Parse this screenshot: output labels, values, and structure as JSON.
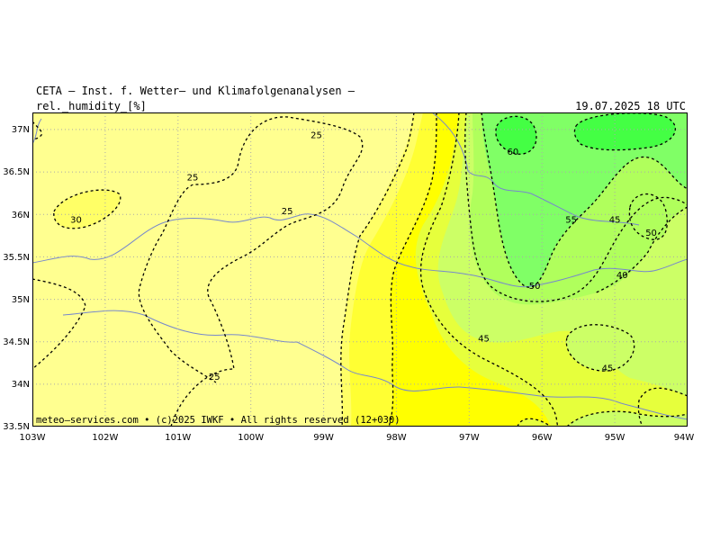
{
  "header": {
    "title": "CETA – Inst. f. Wetter– und Klimafolgenanalysen –",
    "variable": "rel._humidity_[%]",
    "datetime": "19.07.2025 18 UTC"
  },
  "map": {
    "lon_range": [
      -103,
      -94
    ],
    "lat_range": [
      33.5,
      37.2
    ],
    "lon_labels": [
      "103W",
      "102W",
      "101W",
      "100W",
      "99W",
      "98W",
      "97W",
      "96W",
      "95W",
      "94W"
    ],
    "lat_labels": [
      "37N",
      "36.5N",
      "36N",
      "35.5N",
      "35N",
      "34.5N",
      "34N",
      "33.5N"
    ],
    "contour_labels": [
      {
        "text": "25",
        "lon": -99.1,
        "lat": 36.9
      },
      {
        "text": "25",
        "lon": -100.8,
        "lat": 36.4
      },
      {
        "text": "25",
        "lon": -99.5,
        "lat": 36.0
      },
      {
        "text": "25",
        "lon": -100.5,
        "lat": 34.05
      },
      {
        "text": "30",
        "lon": -102.4,
        "lat": 35.9
      },
      {
        "text": "60",
        "lon": -96.4,
        "lat": 36.7
      },
      {
        "text": "55",
        "lon": -95.6,
        "lat": 35.9
      },
      {
        "text": "45",
        "lon": -95.0,
        "lat": 35.9
      },
      {
        "text": "50",
        "lon": -94.5,
        "lat": 35.75
      },
      {
        "text": "50",
        "lon": -96.1,
        "lat": 35.12
      },
      {
        "text": "40",
        "lon": -94.9,
        "lat": 35.25
      },
      {
        "text": "45",
        "lon": -96.8,
        "lat": 34.5
      },
      {
        "text": "45",
        "lon": -95.1,
        "lat": 34.15
      }
    ],
    "colors": {
      "rh_20_25": "#ffff90",
      "rh_25_30": "#ffff66",
      "rh_30_35": "#ffff33",
      "rh_35_40": "#ffff00",
      "rh_40_45": "#e6ff3c",
      "rh_45_50": "#ccff66",
      "rh_50_55": "#b0ff5c",
      "rh_55_60": "#80ff66",
      "rh_60_65": "#44ff44",
      "border": "#7788cc",
      "grid": "#aaaaaa"
    },
    "copyright": "meteo–services.com • (c)2025 IWKF • All rights reserved (12+030)"
  }
}
